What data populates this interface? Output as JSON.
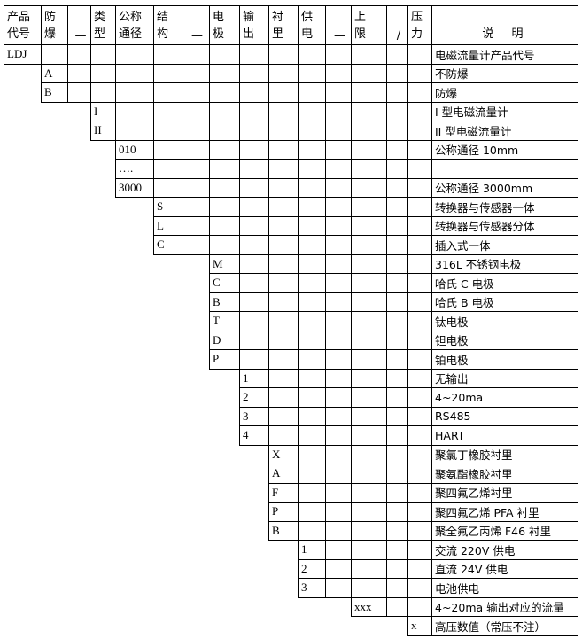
{
  "headers": [
    "产品\n代号",
    "防\n爆",
    "—",
    "类\n型",
    "公称\n通径",
    "结\n构",
    "—",
    "电\n极",
    "输\n出",
    "衬\n里",
    "供\n电",
    "—",
    "上\n限",
    "/",
    "压\n力",
    "说 明"
  ],
  "rows": [
    {
      "col": 0,
      "code": "LDJ",
      "desc": "电磁流量计产品代号"
    },
    {
      "col": 1,
      "code": "A",
      "desc": "不防爆"
    },
    {
      "col": 1,
      "code": "B",
      "desc": "防爆"
    },
    {
      "col": 3,
      "code": "I",
      "desc": "I 型电磁流量计"
    },
    {
      "col": 3,
      "code": "II",
      "desc": "II 型电磁流量计"
    },
    {
      "col": 4,
      "code": "010",
      "desc": "公称通径 10mm"
    },
    {
      "col": 4,
      "code": "….",
      "desc": ""
    },
    {
      "col": 4,
      "code": "3000",
      "desc": "公称通径 3000mm"
    },
    {
      "col": 5,
      "code": "S",
      "desc": "转换器与传感器一体"
    },
    {
      "col": 5,
      "code": "L",
      "desc": "转换器与传感器分体"
    },
    {
      "col": 5,
      "code": "C",
      "desc": "插入式一体"
    },
    {
      "col": 7,
      "code": "M",
      "desc": "316L 不锈钢电极"
    },
    {
      "col": 7,
      "code": "C",
      "desc": "哈氏 C 电极"
    },
    {
      "col": 7,
      "code": "B",
      "desc": "哈氏 B 电极"
    },
    {
      "col": 7,
      "code": "T",
      "desc": "钛电极"
    },
    {
      "col": 7,
      "code": "D",
      "desc": "钽电极"
    },
    {
      "col": 7,
      "code": "P",
      "desc": "铂电极"
    },
    {
      "col": 8,
      "code": "1",
      "desc": "无输出"
    },
    {
      "col": 8,
      "code": "2",
      "desc": "4~20ma"
    },
    {
      "col": 8,
      "code": "3",
      "desc": "RS485"
    },
    {
      "col": 8,
      "code": "4",
      "desc": "HART"
    },
    {
      "col": 9,
      "code": "X",
      "desc": "聚氯丁橡胶衬里"
    },
    {
      "col": 9,
      "code": "A",
      "desc": "聚氨酯橡胶衬里"
    },
    {
      "col": 9,
      "code": "F",
      "desc": "聚四氟乙烯衬里"
    },
    {
      "col": 9,
      "code": "P",
      "desc": "聚四氟乙烯 PFA 衬里"
    },
    {
      "col": 9,
      "code": "B",
      "desc": "聚全氟乙丙烯 F46 衬里"
    },
    {
      "col": 10,
      "code": "1",
      "desc": "交流 220V 供电"
    },
    {
      "col": 10,
      "code": "2",
      "desc": "直流 24V 供电"
    },
    {
      "col": 10,
      "code": "3",
      "desc": "电池供电"
    },
    {
      "col": 12,
      "code": "xxx",
      "desc": "4~20ma 输出对应的流量"
    },
    {
      "col": 14,
      "code": "x",
      "desc": "高压数值（常压不注）"
    }
  ]
}
